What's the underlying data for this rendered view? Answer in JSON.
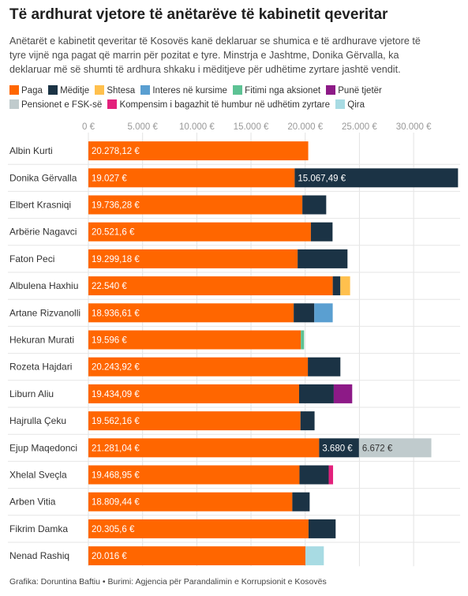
{
  "title": "Të ardhurat vjetore të anëtarëve të kabinetit qeveritar",
  "subtitle_lines": [
    "Anëtarët e kabinetit qeveritar të Kosovës kanë deklaruar se shumica e të ardhurave vjetore të",
    "tyre vijnë nga pagat që marrin për pozitat e tyre. Minstrja e Jashtme, Donika Gërvalla, ka",
    "deklaruar më së shumti të ardhura shkaku i mëditjeve për udhëtime zyrtare jashtë vendit."
  ],
  "legend": [
    {
      "name": "Paga",
      "color": "#ff6600"
    },
    {
      "name": "Mëditje",
      "color": "#1b3345"
    },
    {
      "name": "Shtesa",
      "color": "#ffc04d"
    },
    {
      "name": "Interes në kursime",
      "color": "#5a9fd1"
    },
    {
      "name": "Fitimi nga aksionet",
      "color": "#5dc294"
    },
    {
      "name": "Punë tjetër",
      "color": "#8d1a87"
    },
    {
      "name": "Pensionet e FSK-së",
      "color": "#c0cbcd"
    },
    {
      "name": "Kompensim i bagazhit të humbur në udhëtim zyrtare",
      "color": "#e3217c"
    },
    {
      "name": "Qira",
      "color": "#a8dbe3"
    }
  ],
  "footer": "Grafika: Doruntina Baftiu • Burimi: Agjencia për Parandalimin e Korrupsionit e Kosovës",
  "chart_data": {
    "type": "bar",
    "orientation": "horizontal",
    "stacked": true,
    "xlim": [
      0,
      33000
    ],
    "x_ticks": [
      0,
      5000,
      10000,
      15000,
      20000,
      25000,
      30000
    ],
    "x_tick_labels": [
      "0 €",
      "5.000 €",
      "10.000 €",
      "15.000 €",
      "20.000 €",
      "25.000 €",
      "30.000 €"
    ],
    "grid": true,
    "categories": [
      "Albin Kurti",
      "Donika Gërvalla",
      "Elbert Krasniqi",
      "Arbërie Nagavci",
      "Faton Peci",
      "Albulena Haxhiu",
      "Artane Rizvanolli",
      "Hekuran Murati",
      "Rozeta Hajdari",
      "Liburn Aliu",
      "Hajrulla Çeku",
      "Ejup Maqedonci",
      "Xhelal Sveçla",
      "Arben Vitia",
      "Fikrim Damka",
      "Nenad Rashiq"
    ],
    "series": [
      {
        "name": "Paga",
        "values": [
          20278.12,
          19027,
          19736.28,
          20521.6,
          19299.18,
          22540,
          18936.61,
          19596,
          20243.92,
          19434.09,
          19562.16,
          21281.04,
          19468.95,
          18809.44,
          20305.6,
          20016
        ]
      },
      {
        "name": "Mëditje",
        "values": [
          0,
          15067.49,
          2200,
          2000,
          4600,
          700,
          1900,
          0,
          3000,
          3200,
          1300,
          3680,
          2700,
          1600,
          2500,
          0
        ]
      },
      {
        "name": "Shtesa",
        "values": [
          0,
          0,
          0,
          0,
          0,
          900,
          0,
          0,
          0,
          0,
          0,
          0,
          0,
          0,
          0,
          0
        ]
      },
      {
        "name": "Interes në kursime",
        "values": [
          0,
          0,
          0,
          0,
          0,
          0,
          1700,
          0,
          0,
          0,
          0,
          0,
          0,
          0,
          0,
          0
        ]
      },
      {
        "name": "Fitimi nga aksionet",
        "values": [
          0,
          0,
          0,
          0,
          0,
          0,
          0,
          300,
          0,
          0,
          0,
          0,
          0,
          0,
          0,
          0
        ]
      },
      {
        "name": "Punë tjetër",
        "values": [
          0,
          0,
          0,
          0,
          0,
          0,
          0,
          0,
          0,
          1700,
          0,
          0,
          0,
          0,
          0,
          0
        ]
      },
      {
        "name": "Pensionet e FSK-së",
        "values": [
          0,
          0,
          0,
          0,
          0,
          0,
          0,
          0,
          0,
          0,
          0,
          6672,
          0,
          0,
          0,
          0
        ]
      },
      {
        "name": "Kompensim i bagazhit të humbur në udhëtim zyrtare",
        "values": [
          0,
          0,
          0,
          0,
          0,
          0,
          0,
          0,
          0,
          0,
          0,
          0,
          400,
          0,
          0,
          0
        ]
      },
      {
        "name": "Qira",
        "values": [
          0,
          0,
          0,
          0,
          0,
          0,
          0,
          0,
          0,
          0,
          0,
          0,
          0,
          0,
          0,
          1700
        ]
      }
    ],
    "data_labels": [
      {
        "row": 0,
        "series": 0,
        "text": "20.278,12 €"
      },
      {
        "row": 1,
        "series": 0,
        "text": "19.027 €"
      },
      {
        "row": 1,
        "series": 1,
        "text": "15.067,49 €"
      },
      {
        "row": 2,
        "series": 0,
        "text": "19.736,28 €"
      },
      {
        "row": 3,
        "series": 0,
        "text": "20.521,6 €"
      },
      {
        "row": 4,
        "series": 0,
        "text": "19.299,18 €"
      },
      {
        "row": 5,
        "series": 0,
        "text": "22.540 €"
      },
      {
        "row": 6,
        "series": 0,
        "text": "18.936,61 €"
      },
      {
        "row": 7,
        "series": 0,
        "text": "19.596 €"
      },
      {
        "row": 8,
        "series": 0,
        "text": "20.243,92 €"
      },
      {
        "row": 9,
        "series": 0,
        "text": "19.434,09 €"
      },
      {
        "row": 10,
        "series": 0,
        "text": "19.562,16 €"
      },
      {
        "row": 11,
        "series": 0,
        "text": "21.281,04 €"
      },
      {
        "row": 11,
        "series": 1,
        "text": "3.680 €"
      },
      {
        "row": 11,
        "series": 6,
        "text": "6.672 €"
      },
      {
        "row": 12,
        "series": 0,
        "text": "19.468,95 €"
      },
      {
        "row": 13,
        "series": 0,
        "text": "18.809,44 €"
      },
      {
        "row": 14,
        "series": 0,
        "text": "20.305,6 €"
      },
      {
        "row": 15,
        "series": 0,
        "text": "20.016 €"
      }
    ]
  }
}
